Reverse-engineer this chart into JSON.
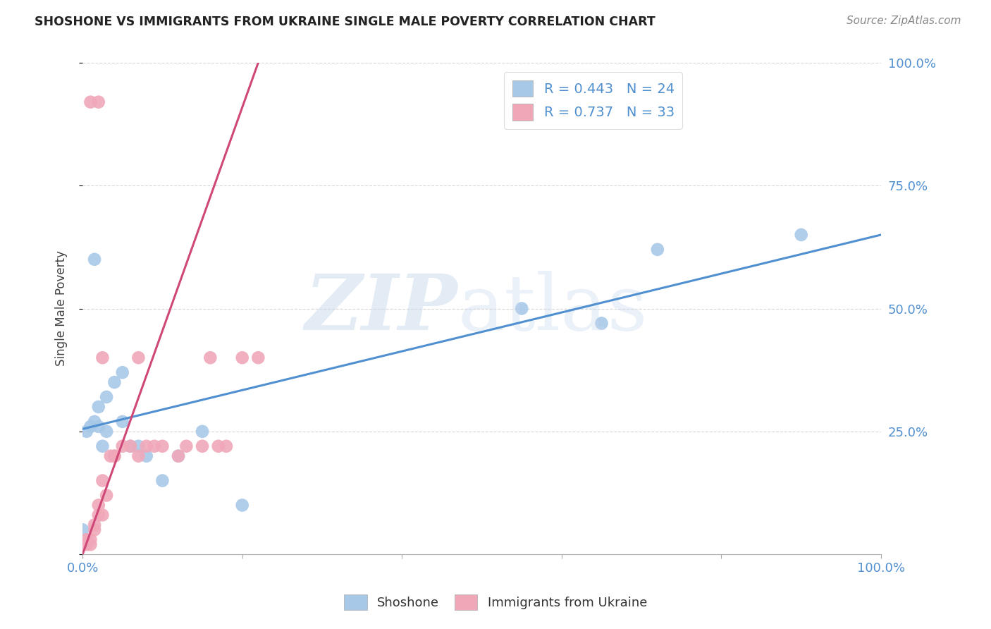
{
  "title": "SHOSHONE VS IMMIGRANTS FROM UKRAINE SINGLE MALE POVERTY CORRELATION CHART",
  "source": "Source: ZipAtlas.com",
  "ylabel": "Single Male Poverty",
  "background_color": "#ffffff",
  "shoshone_color": "#a8c8e8",
  "ukraine_color": "#f0a8b8",
  "shoshone_line_color": "#5090d0",
  "ukraine_line_color": "#d04878",
  "shoshone_x": [
    0.0,
    0.5,
    1.0,
    1.5,
    2.0,
    2.0,
    2.5,
    3.0,
    3.0,
    4.0,
    5.0,
    5.0,
    6.0,
    7.0,
    8.0,
    10.0,
    12.0,
    15.0,
    20.0,
    55.0,
    65.0,
    72.0,
    90.0,
    1.5
  ],
  "shoshone_y": [
    5.0,
    25.0,
    26.0,
    27.0,
    26.0,
    30.0,
    22.0,
    25.0,
    32.0,
    35.0,
    27.0,
    37.0,
    22.0,
    22.0,
    20.0,
    15.0,
    20.0,
    25.0,
    10.0,
    50.0,
    47.0,
    62.0,
    65.0,
    60.0
  ],
  "ukraine_x": [
    0.0,
    0.5,
    0.5,
    1.0,
    1.0,
    1.5,
    1.5,
    2.0,
    2.0,
    2.5,
    2.5,
    3.0,
    3.5,
    4.0,
    5.0,
    6.0,
    7.0,
    7.0,
    8.0,
    9.0,
    10.0,
    12.0,
    13.0,
    15.0,
    16.0,
    17.0,
    18.0,
    20.0,
    22.0,
    1.0,
    2.0,
    2.5,
    4.0
  ],
  "ukraine_y": [
    2.0,
    2.0,
    3.0,
    2.0,
    3.0,
    5.0,
    6.0,
    8.0,
    10.0,
    8.0,
    15.0,
    12.0,
    20.0,
    20.0,
    22.0,
    22.0,
    20.0,
    40.0,
    22.0,
    22.0,
    22.0,
    20.0,
    22.0,
    22.0,
    40.0,
    22.0,
    22.0,
    40.0,
    40.0,
    92.0,
    92.0,
    40.0,
    20.0
  ],
  "shoshone_line_x": [
    0,
    100
  ],
  "shoshone_line_y": [
    25.5,
    65.0
  ],
  "ukraine_line_x": [
    0,
    22
  ],
  "ukraine_line_y": [
    0.0,
    100.0
  ],
  "xlim": [
    0,
    100
  ],
  "ylim": [
    0,
    100
  ],
  "xtick_labels": [
    "0.0%",
    "",
    "",
    "",
    "",
    "100.0%"
  ],
  "ytick_labels_right": [
    "",
    "25.0%",
    "50.0%",
    "75.0%",
    "100.0%"
  ],
  "legend_text1": "R = 0.443   N = 24",
  "legend_text2": "R = 0.737   N = 33"
}
